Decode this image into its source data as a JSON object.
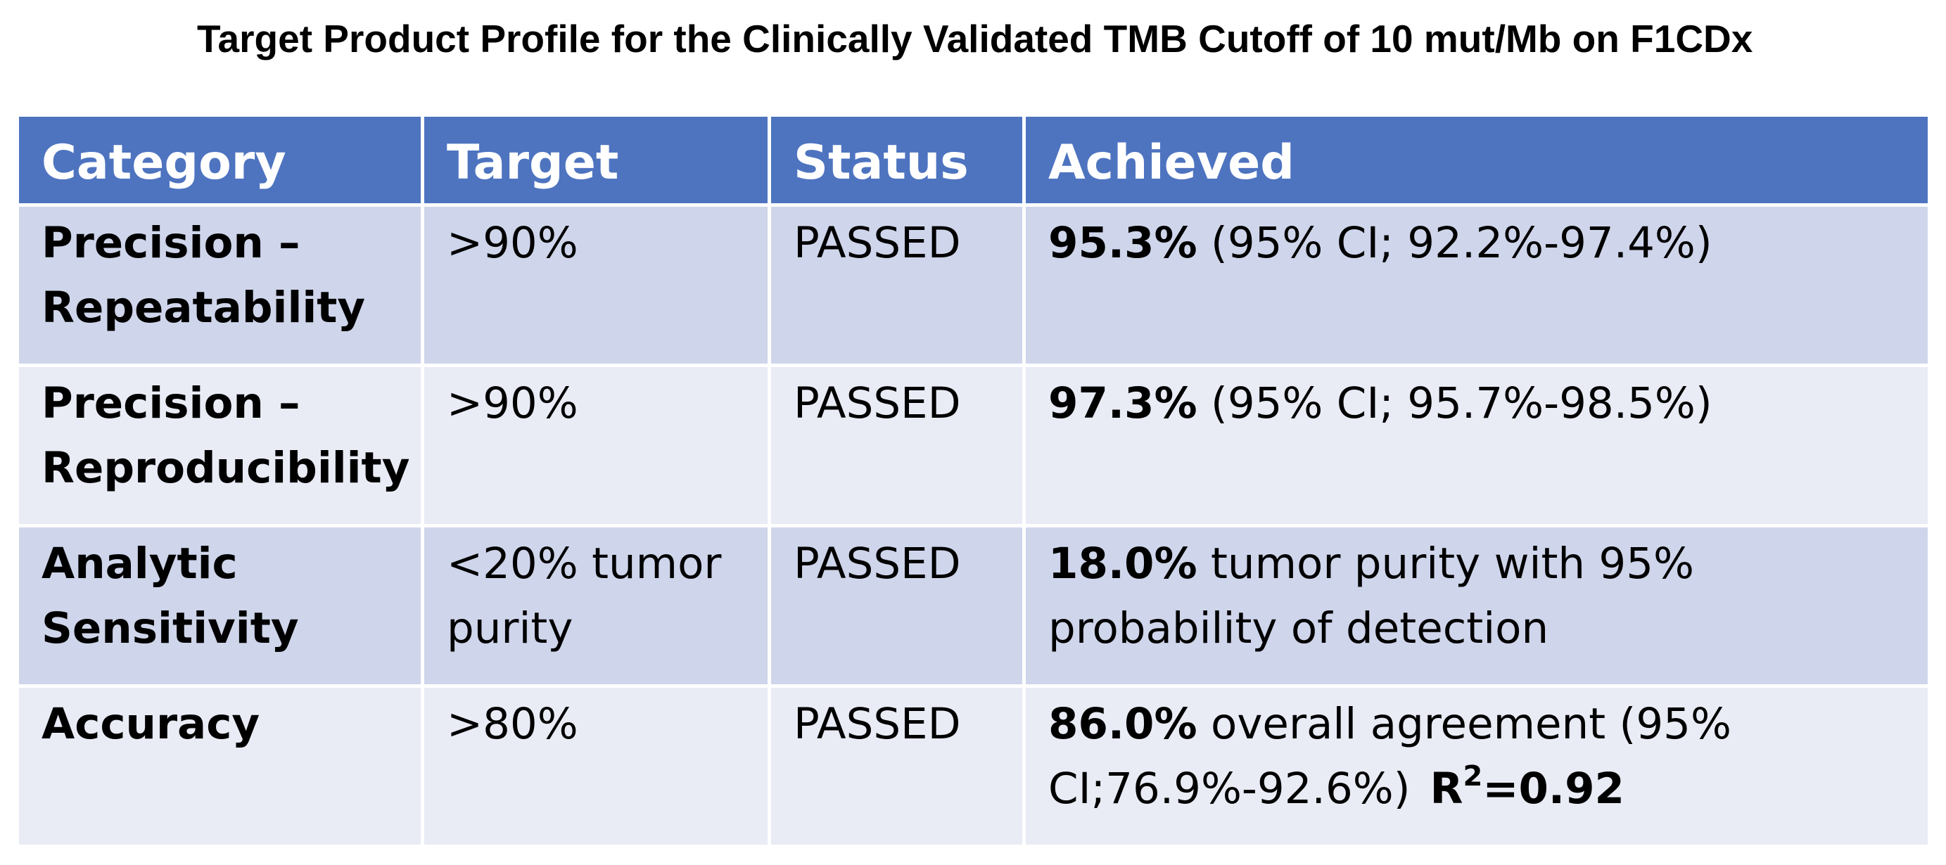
{
  "title": "Target Product Profile for the Clinically Validated TMB Cutoff of 10 mut/Mb on F1CDx",
  "table": {
    "headers": [
      "Category",
      "Target",
      "Status",
      "Achieved"
    ],
    "rows": [
      {
        "category": "Precision – Repeatability",
        "target": ">90%",
        "status": "PASSED",
        "achieved_bold": "95.3%",
        "achieved_rest": "(95% CI; 92.2%-97.4%)"
      },
      {
        "category": "Precision – Reproducibility",
        "target": ">90%",
        "status": "PASSED",
        "achieved_bold": "97.3%",
        "achieved_rest": "(95% CI; 95.7%-98.5%)"
      },
      {
        "category": "Analytic Sensitivity",
        "target": "<20% tumor purity",
        "status": "PASSED",
        "achieved_bold": "18.0%",
        "achieved_rest": "tumor purity with 95% probability of detection"
      },
      {
        "category": "Accuracy",
        "target": ">80%",
        "status": "PASSED",
        "achieved_bold": "86.0%",
        "achieved_rest": "overall agreement (95% CI;76.9%-92.6%)",
        "r2_label": "R",
        "r2_sup": "2",
        "r2_value": "=0.92"
      }
    ]
  },
  "colors": {
    "header_bg": "#4e74c0",
    "row_dark": "#cfd5ea",
    "row_light": "#e9ebf5"
  }
}
